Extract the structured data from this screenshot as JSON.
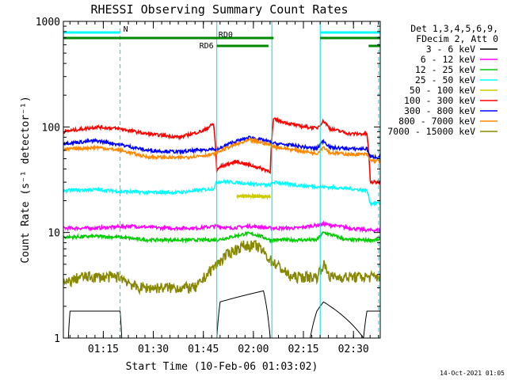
{
  "chart_data": {
    "type": "line",
    "title": "RHESSI Observing Summary Count Rates",
    "xlabel": "Start Time (10-Feb-06 01:03:02)",
    "ylabel": "Count Rate (s⁻¹ detector⁻¹)",
    "y_scale": "log",
    "ylim": [
      1,
      1000
    ],
    "xlim_minutes_after_start": [
      0,
      95
    ],
    "y_ticks": [
      {
        "value": 1,
        "label": "1"
      },
      {
        "value": 10,
        "label": "10"
      },
      {
        "value": 100,
        "label": "100"
      },
      {
        "value": 1000,
        "label": "1000"
      }
    ],
    "x_ticks": [
      {
        "minutes": 11.97,
        "label": "01:15"
      },
      {
        "minutes": 26.97,
        "label": "01:30"
      },
      {
        "minutes": 41.97,
        "label": "01:45"
      },
      {
        "minutes": 56.97,
        "label": "02:00"
      },
      {
        "minutes": 71.97,
        "label": "02:15"
      },
      {
        "minutes": 86.97,
        "label": "02:30"
      }
    ],
    "legend_header": [
      "Det 1,3,4,5,6,9,",
      "FDecim 2, Att 0"
    ],
    "legend_placement": "right",
    "series": [
      {
        "name": "3 - 6 keV",
        "color": "#000000",
        "x": [
          0,
          1.5,
          2,
          17,
          17.5,
          46,
          47,
          60,
          62,
          74,
          76,
          78,
          90,
          91,
          95
        ],
        "y": [
          1,
          1,
          1.8,
          1.8,
          1,
          1,
          2.2,
          2.8,
          1,
          1,
          1.8,
          2.2,
          1,
          1.8,
          1.8
        ]
      },
      {
        "name": "6 - 12 keV",
        "color": "#ff00ff",
        "x": [
          0,
          10,
          20,
          30,
          40,
          46,
          50,
          56,
          62,
          70,
          78,
          86,
          91,
          93,
          95
        ],
        "y": [
          11,
          11,
          11.5,
          11,
          11,
          11.5,
          11,
          11.5,
          11,
          11,
          12,
          11,
          10.5,
          10.5,
          10.5
        ]
      },
      {
        "name": "12 - 25 keV",
        "color": "#00cc00",
        "x": [
          0,
          10,
          17,
          25,
          35,
          46,
          50,
          55,
          58,
          62,
          70,
          76,
          78,
          85,
          91,
          95
        ],
        "y": [
          9,
          9.2,
          9,
          8.5,
          8.5,
          8.5,
          9,
          9.8,
          9.5,
          8.5,
          8.5,
          8.5,
          10,
          8.5,
          8.5,
          8.5
        ]
      },
      {
        "name": "25 - 50 keV",
        "color": "#00ffff",
        "x": [
          0,
          10,
          17,
          25,
          35,
          45,
          46,
          47,
          62,
          63,
          70,
          78,
          86,
          91,
          92,
          95
        ],
        "y": [
          25,
          25.5,
          24.5,
          24,
          24,
          26,
          30,
          30.5,
          28,
          30,
          28,
          27,
          26,
          25,
          19,
          19
        ]
      },
      {
        "name": "50 - 100 keV",
        "color": "#cccc00",
        "x": [
          52,
          62
        ],
        "y": [
          22,
          22
        ]
      },
      {
        "name": "100 - 300 keV",
        "color": "#ff0000",
        "x": [
          0,
          3,
          10,
          17,
          25,
          35,
          42,
          45,
          46,
          47,
          52,
          62,
          63,
          70,
          76,
          78,
          80,
          86,
          91,
          92,
          95
        ],
        "y": [
          90,
          93,
          100,
          96,
          86,
          80,
          92,
          107,
          38,
          42,
          47,
          38,
          118,
          103,
          97,
          114,
          96,
          86,
          86,
          30,
          30
        ]
      },
      {
        "name": "300 - 800 keV",
        "color": "#0000ff",
        "x": [
          0,
          3,
          10,
          17,
          25,
          35,
          45,
          46,
          50,
          56,
          62,
          63,
          70,
          76,
          78,
          80,
          86,
          91,
          92,
          95
        ],
        "y": [
          70,
          71,
          74,
          68,
          60,
          58,
          62,
          60,
          70,
          80,
          72,
          70,
          66,
          62,
          74,
          64,
          62,
          62,
          52,
          52
        ]
      },
      {
        "name": "800 - 7000 keV",
        "color": "#ff8800",
        "x": [
          0,
          3,
          10,
          17,
          25,
          35,
          45,
          46,
          50,
          56,
          62,
          63,
          70,
          76,
          78,
          80,
          86,
          91,
          92,
          95
        ],
        "y": [
          61,
          62,
          64,
          60,
          52,
          51,
          55,
          57,
          65,
          75,
          68,
          65,
          60,
          56,
          65,
          57,
          55,
          55,
          48,
          48
        ]
      },
      {
        "name": "7000 - 15000 keV",
        "color": "#888800",
        "x": [
          0,
          5,
          17,
          22,
          30,
          40,
          46,
          50,
          54,
          58,
          62,
          68,
          72,
          76,
          78,
          80,
          86,
          92,
          95
        ],
        "y": [
          3.2,
          3.8,
          3.8,
          3.0,
          3.0,
          3.0,
          5.0,
          6.5,
          7.5,
          7.5,
          5.5,
          3.8,
          3.8,
          3.8,
          5.0,
          3.8,
          3.8,
          3.8,
          3.8
        ]
      }
    ],
    "flags": [
      {
        "label": "N",
        "color": "#00ffff",
        "segments": [
          [
            0,
            17
          ],
          [
            77,
            95
          ]
        ]
      },
      {
        "label": "RD0",
        "color": "#008800",
        "segments": [
          [
            0,
            63
          ],
          [
            77,
            95
          ]
        ]
      },
      {
        "label": "RD6",
        "color": "#008800",
        "segments": [
          [
            46,
            61.5
          ],
          [
            91.5,
            95
          ]
        ]
      }
    ],
    "markers": [
      {
        "x": 17,
        "style": "dashed"
      },
      {
        "x": 46,
        "style": "solid"
      },
      {
        "x": 62.5,
        "style": "solid"
      },
      {
        "x": 77,
        "style": "solid"
      },
      {
        "x": 94.5,
        "style": "dashed"
      }
    ],
    "footer": "14-Oct-2021 01:05"
  }
}
